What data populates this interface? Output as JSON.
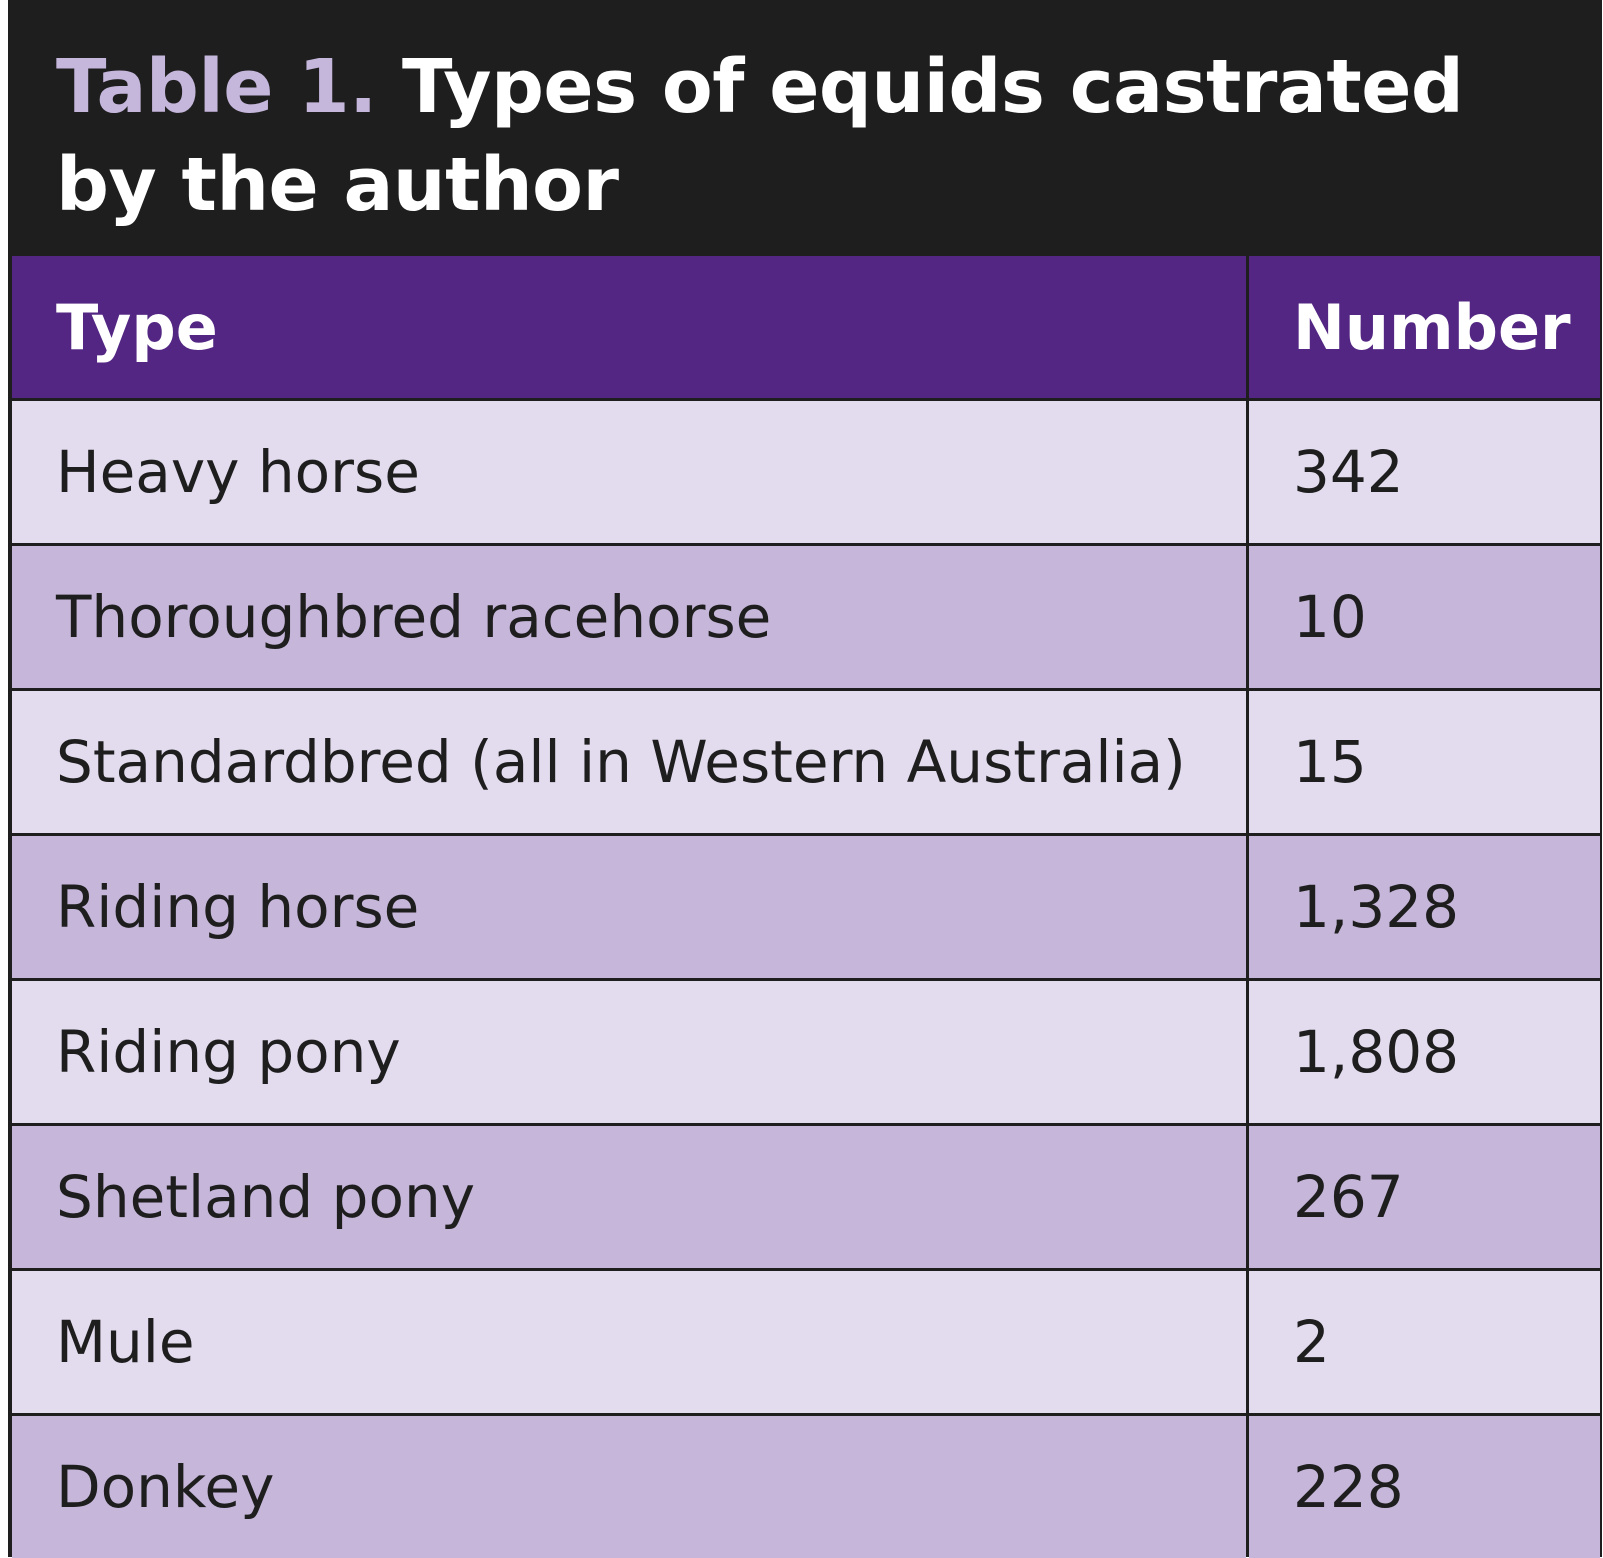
{
  "title": {
    "label": "Table 1.",
    "text": "Types of equids castrated by the author"
  },
  "colors": {
    "title_background": "#1e1e1e",
    "title_label": "#c5b6dc",
    "header_background": "#522682",
    "row_light": "#e3dbee",
    "row_dark": "#c6b7da"
  },
  "table": {
    "headers": [
      "Type",
      "Number"
    ],
    "rows": [
      {
        "type": "Heavy horse",
        "number": "342"
      },
      {
        "type": "Thoroughbred racehorse",
        "number": "10"
      },
      {
        "type": "Standardbred (all in Western Australia)",
        "number": "15"
      },
      {
        "type": "Riding horse",
        "number": "1,328"
      },
      {
        "type": "Riding pony",
        "number": "1,808"
      },
      {
        "type": "Shetland pony",
        "number": "267"
      },
      {
        "type": "Mule",
        "number": "2"
      },
      {
        "type": "Donkey",
        "number": "228"
      }
    ]
  }
}
